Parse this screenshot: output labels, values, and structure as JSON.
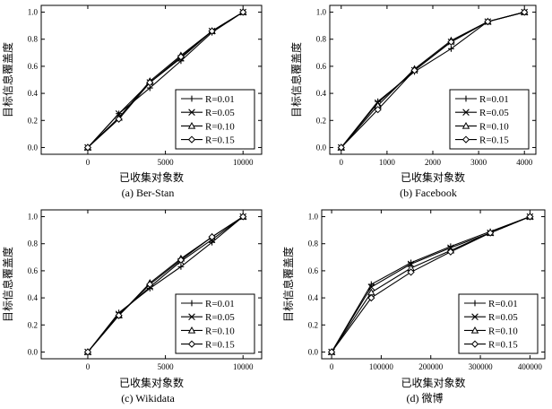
{
  "chart_data": [
    {
      "type": "line",
      "caption": "(a) Ber-Stan",
      "xlabel": "已收集对象数",
      "ylabel": "目标信息覆盖度",
      "xlim": [
        -3000,
        11200
      ],
      "ylim": [
        -0.05,
        1.05
      ],
      "xticks": [
        0,
        5000,
        10000
      ],
      "xtick_labels": [
        "0",
        "5000",
        "10000"
      ],
      "yticks": [
        0,
        0.2,
        0.4,
        0.6,
        0.8,
        1.0
      ],
      "ytick_labels": [
        "0.0",
        "0.2",
        "0.4",
        "0.6",
        "0.8",
        "1.0"
      ],
      "legend_position": "bottom-right",
      "series": [
        {
          "name": "R=0.01",
          "marker": "plus",
          "x": [
            0,
            2000,
            4000,
            6000,
            8000,
            10000
          ],
          "y": [
            0,
            0.25,
            0.44,
            0.64,
            0.85,
            1.0
          ]
        },
        {
          "name": "R=0.05",
          "marker": "cross",
          "x": [
            0,
            2000,
            4000,
            6000,
            8000,
            10000
          ],
          "y": [
            0,
            0.25,
            0.48,
            0.66,
            0.86,
            1.0
          ]
        },
        {
          "name": "R=0.10",
          "marker": "triangle",
          "x": [
            0,
            2000,
            4000,
            6000,
            8000,
            10000
          ],
          "y": [
            0,
            0.22,
            0.49,
            0.68,
            0.86,
            1.0
          ]
        },
        {
          "name": "R=0.15",
          "marker": "diamond",
          "x": [
            0,
            2000,
            4000,
            6000,
            8000,
            10000
          ],
          "y": [
            0,
            0.21,
            0.48,
            0.67,
            0.86,
            1.0
          ]
        }
      ]
    },
    {
      "type": "line",
      "caption": "(b) Facebook",
      "xlabel": "已收集对象数",
      "ylabel": "目标信息覆盖度",
      "xlim": [
        -250,
        4250
      ],
      "ylim": [
        -0.05,
        1.05
      ],
      "xticks": [
        0,
        1000,
        2000,
        3000,
        4000
      ],
      "xtick_labels": [
        "0",
        "1000",
        "2000",
        "3000",
        "4000"
      ],
      "yticks": [
        0,
        0.2,
        0.4,
        0.6,
        0.8,
        1.0
      ],
      "ytick_labels": [
        "0.0",
        "0.2",
        "0.4",
        "0.6",
        "0.8",
        "1.0"
      ],
      "legend_position": "bottom-right",
      "series": [
        {
          "name": "R=0.01",
          "marker": "plus",
          "x": [
            0,
            800,
            1600,
            2400,
            3200,
            4000
          ],
          "y": [
            0,
            0.34,
            0.56,
            0.73,
            0.93,
            1.0
          ]
        },
        {
          "name": "R=0.05",
          "marker": "cross",
          "x": [
            0,
            800,
            1600,
            2400,
            3200,
            4000
          ],
          "y": [
            0,
            0.33,
            0.57,
            0.78,
            0.93,
            1.0
          ]
        },
        {
          "name": "R=0.10",
          "marker": "triangle",
          "x": [
            0,
            800,
            1600,
            2400,
            3200,
            4000
          ],
          "y": [
            0,
            0.31,
            0.58,
            0.79,
            0.93,
            1.0
          ]
        },
        {
          "name": "R=0.15",
          "marker": "diamond",
          "x": [
            0,
            800,
            1600,
            2400,
            3200,
            4000
          ],
          "y": [
            0,
            0.28,
            0.57,
            0.78,
            0.93,
            1.0
          ]
        }
      ]
    },
    {
      "type": "line",
      "caption": "(c) Wikidata",
      "xlabel": "已收集对象数",
      "ylabel": "目标信息覆盖度",
      "xlim": [
        -3000,
        11200
      ],
      "ylim": [
        -0.05,
        1.05
      ],
      "xticks": [
        0,
        5000,
        10000
      ],
      "xtick_labels": [
        "0",
        "5000",
        "10000"
      ],
      "yticks": [
        0,
        0.2,
        0.4,
        0.6,
        0.8,
        1.0
      ],
      "ytick_labels": [
        "0.0",
        "0.2",
        "0.4",
        "0.6",
        "0.8",
        "1.0"
      ],
      "legend_position": "bottom-right",
      "series": [
        {
          "name": "R=0.01",
          "marker": "plus",
          "x": [
            0,
            2000,
            4000,
            6000,
            8000,
            10000
          ],
          "y": [
            0,
            0.29,
            0.47,
            0.63,
            0.81,
            1.0
          ]
        },
        {
          "name": "R=0.05",
          "marker": "cross",
          "x": [
            0,
            2000,
            4000,
            6000,
            8000,
            10000
          ],
          "y": [
            0,
            0.28,
            0.48,
            0.67,
            0.83,
            1.0
          ]
        },
        {
          "name": "R=0.10",
          "marker": "triangle",
          "x": [
            0,
            2000,
            4000,
            6000,
            8000,
            10000
          ],
          "y": [
            0,
            0.27,
            0.51,
            0.69,
            0.85,
            1.0
          ]
        },
        {
          "name": "R=0.15",
          "marker": "diamond",
          "x": [
            0,
            2000,
            4000,
            6000,
            8000,
            10000
          ],
          "y": [
            0,
            0.27,
            0.5,
            0.68,
            0.85,
            1.0
          ]
        }
      ]
    },
    {
      "type": "line",
      "caption": "(d)  微博",
      "xlabel": "已收集对象数",
      "ylabel": "目标信息覆盖度",
      "xlim": [
        -20000,
        430000
      ],
      "ylim": [
        -0.05,
        1.05
      ],
      "xticks": [
        0,
        100000,
        200000,
        300000,
        400000
      ],
      "xtick_labels": [
        "0",
        "100000",
        "200000",
        "300000",
        "400000"
      ],
      "yticks": [
        0,
        0.2,
        0.4,
        0.6,
        0.8,
        1.0
      ],
      "ytick_labels": [
        "0.0",
        "0.2",
        "0.4",
        "0.6",
        "0.8",
        "1.0"
      ],
      "legend_position": "bottom-right",
      "series": [
        {
          "name": "R=0.01",
          "marker": "plus",
          "x": [
            0,
            80000,
            160000,
            240000,
            320000,
            400000
          ],
          "y": [
            0,
            0.5,
            0.66,
            0.78,
            0.89,
            1.0
          ]
        },
        {
          "name": "R=0.05",
          "marker": "cross",
          "x": [
            0,
            80000,
            160000,
            240000,
            320000,
            400000
          ],
          "y": [
            0,
            0.48,
            0.65,
            0.77,
            0.88,
            1.0
          ]
        },
        {
          "name": "R=0.10",
          "marker": "triangle",
          "x": [
            0,
            80000,
            160000,
            240000,
            320000,
            400000
          ],
          "y": [
            0,
            0.44,
            0.62,
            0.75,
            0.88,
            1.0
          ]
        },
        {
          "name": "R=0.15",
          "marker": "diamond",
          "x": [
            0,
            80000,
            160000,
            240000,
            320000,
            400000
          ],
          "y": [
            0,
            0.4,
            0.59,
            0.74,
            0.88,
            1.0
          ]
        }
      ]
    }
  ]
}
